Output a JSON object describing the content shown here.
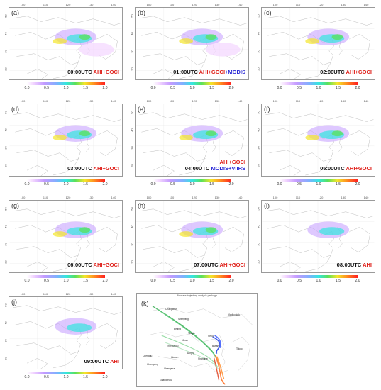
{
  "panels": [
    {
      "label": "(a)",
      "time": "00:00UTC",
      "sensor": "AHI+GOCI",
      "sensor2": ""
    },
    {
      "label": "(b)",
      "time": "01:00UTC",
      "sensor": "AHI+GOCI",
      "sensor2": "+MODIS"
    },
    {
      "label": "(c)",
      "time": "02:00UTC",
      "sensor": "AHI+GOCI",
      "sensor2": ""
    },
    {
      "label": "(d)",
      "time": "03:00UTC",
      "sensor": "AHI+GOCI",
      "sensor2": ""
    },
    {
      "label": "(e)",
      "time": "04:00UTC",
      "sensor": "AHI+GOCI",
      "sensor2": "MODIS+VIIRS"
    },
    {
      "label": "(f)",
      "time": "05:00UTC",
      "sensor": "AHI+GOCI",
      "sensor2": ""
    },
    {
      "label": "(g)",
      "time": "06:00UTC",
      "sensor": "AHI+GOCI",
      "sensor2": ""
    },
    {
      "label": "(h)",
      "time": "07:00UTC",
      "sensor": "AHI+GOCI",
      "sensor2": ""
    },
    {
      "label": "(i)",
      "time": "08:00UTC",
      "sensor": "AHI",
      "sensor2": ""
    },
    {
      "label": "(j)",
      "time": "09:00UTC",
      "sensor": "AHI",
      "sensor2": ""
    }
  ],
  "lon_ticks": [
    "100",
    "110",
    "120",
    "130",
    "140"
  ],
  "lat_ticks": [
    "50",
    "40",
    "30",
    "20"
  ],
  "colorbar_ticks": [
    "0.0",
    "0.5",
    "1.0",
    "1.5",
    "2.0"
  ],
  "colors": {
    "sensor_red": "#e0211b",
    "sensor_blue": "#2b2bd6"
  },
  "trajectory": {
    "label": "(k)",
    "title": "Air mass trajectory analysis package",
    "cities": [
      "Changchun",
      "Shenyang",
      "Beijing",
      "Tianjin",
      "Jinan",
      "Zhengzhou",
      "Nanjing",
      "Shanghai",
      "Wuhan",
      "Chengdu",
      "Chongqing",
      "Changsha",
      "Guangzhou",
      "Seoul",
      "Busan",
      "Tokyo",
      "Vladivostok"
    ]
  }
}
